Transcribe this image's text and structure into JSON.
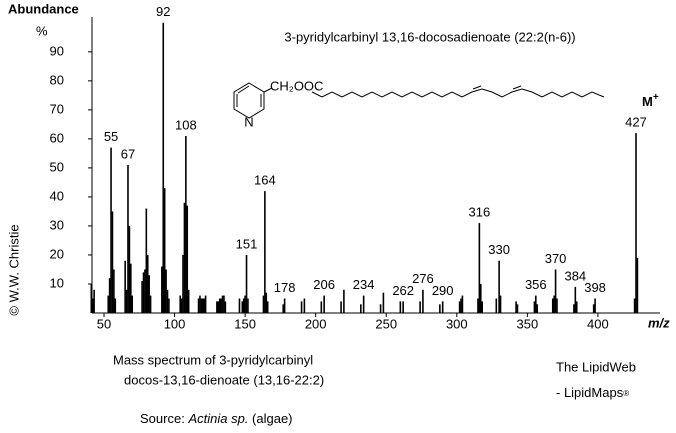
{
  "chart_data": {
    "type": "spectrum",
    "title": "3-pyridylcarbinyl 13,16-docosadienoate (22:2(n-6))",
    "y_label": "Abundance",
    "y_unit": "%",
    "x_label": "m/z",
    "xlim": [
      41.5,
      444
    ],
    "ylim": [
      0,
      102
    ],
    "xticks": [
      50,
      100,
      150,
      200,
      250,
      300,
      350,
      400
    ],
    "yticks": [
      10,
      20,
      30,
      40,
      50,
      60,
      70,
      80,
      90
    ],
    "color": "#000000",
    "title_color": "#1a1aff",
    "structure": {
      "group": "CH₂OOC",
      "atom": "N"
    },
    "molecular_ion": {
      "text": "M",
      "superscript": "+"
    },
    "peaks": {
      "x": [
        55,
        67,
        92,
        108,
        151,
        164,
        178,
        206,
        234,
        262,
        276,
        290,
        316,
        330,
        356,
        370,
        384,
        398,
        427
      ],
      "values": [
        57,
        51,
        100,
        61,
        20,
        42,
        5,
        6,
        6,
        4,
        8,
        4,
        31,
        18,
        6,
        15,
        9,
        5,
        62
      ]
    },
    "minor_peaks": {
      "x": [
        41,
        42,
        43,
        53,
        54,
        56,
        57,
        58,
        65,
        66,
        68,
        69,
        70,
        77,
        78,
        79,
        80,
        81,
        82,
        83,
        91,
        93,
        94,
        95,
        96,
        104,
        105,
        106,
        107,
        109,
        110,
        117,
        118,
        119,
        120,
        121,
        122,
        130,
        131,
        132,
        133,
        134,
        135,
        136,
        146,
        148,
        149,
        150,
        152,
        163,
        165,
        166,
        177,
        190,
        192,
        204,
        218,
        220,
        232,
        246,
        248,
        260,
        274,
        288,
        302,
        303,
        304,
        315,
        317,
        318,
        328,
        331,
        342,
        343,
        355,
        357,
        368,
        369,
        371,
        383,
        385,
        397,
        426,
        428
      ],
      "values": [
        10,
        5,
        8,
        6,
        12,
        35,
        15,
        5,
        18,
        8,
        30,
        17,
        6,
        11,
        14,
        15,
        36,
        20,
        13,
        6,
        16,
        43,
        15,
        8,
        5,
        6,
        5,
        20,
        38,
        37,
        8,
        5,
        6,
        5,
        5,
        5,
        6,
        4,
        4,
        5,
        5,
        6,
        6,
        4,
        5,
        4,
        5,
        6,
        5,
        6,
        7,
        4,
        3,
        4,
        5,
        4,
        4,
        8,
        3,
        3,
        7,
        4,
        4,
        3,
        4,
        5,
        6,
        5,
        10,
        4,
        5,
        6,
        4,
        3,
        4,
        3,
        5,
        6,
        5,
        3,
        4,
        3,
        5,
        19
      ]
    },
    "caption": [
      "Mass spectrum of 3-pyridylcarbinyl",
      "docos-13,16-dienoate (13,16-22:2)"
    ],
    "source": {
      "label": "Source:",
      "organism": "Actinia sp.",
      "note": "(algae)"
    },
    "credit": [
      "The LipidWeb",
      "- LipidMaps",
      "®"
    ],
    "copyright": "© W.W. Christie"
  }
}
